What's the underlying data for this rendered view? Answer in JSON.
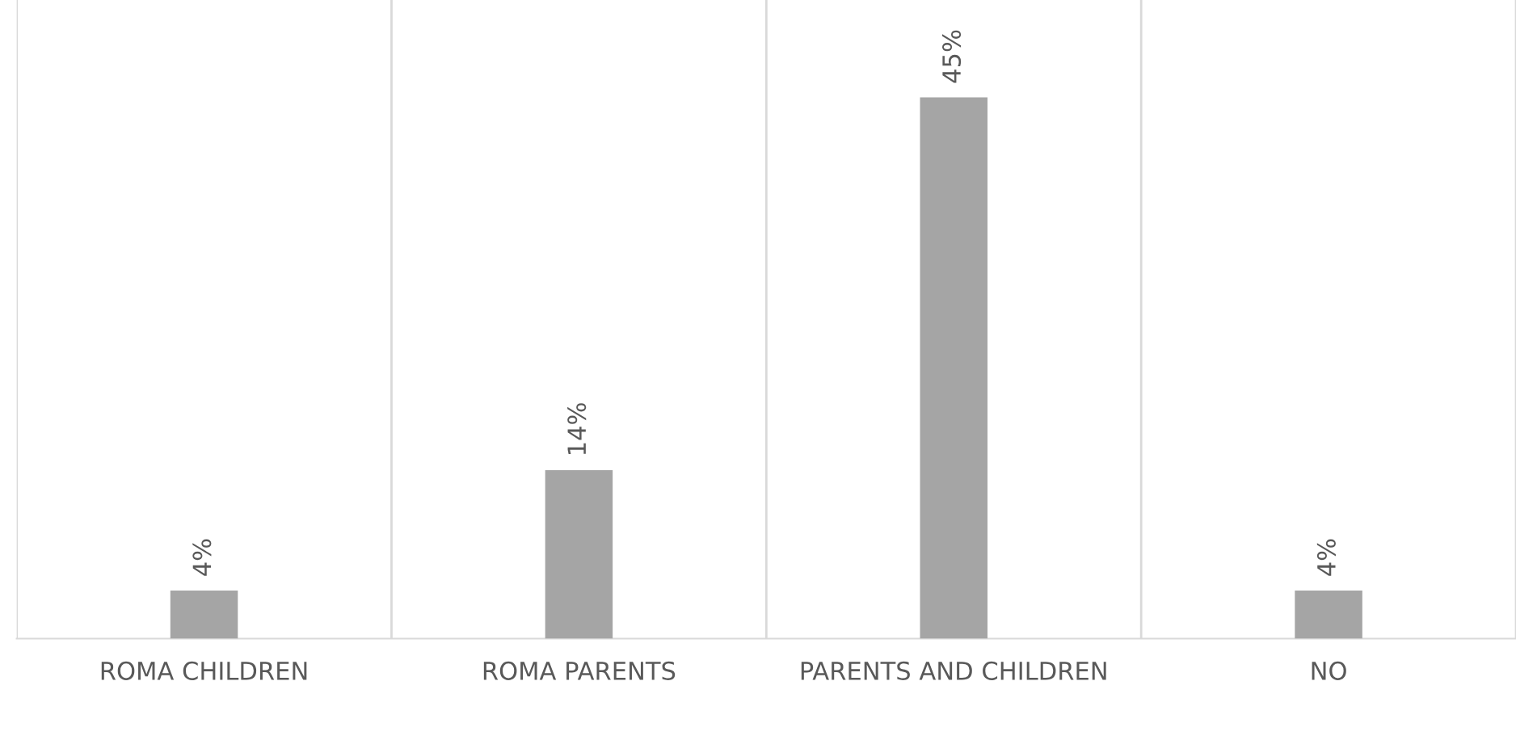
{
  "chart_data": {
    "type": "bar",
    "categories": [
      "ROMA CHILDREN",
      "ROMA PARENTS",
      "PARENTS AND CHILDREN",
      "NO"
    ],
    "values": [
      4,
      14,
      45,
      4
    ],
    "value_labels": [
      "4%",
      "14%",
      "45%",
      "4%"
    ],
    "color": "#a5a5a5",
    "grid": "x"
  }
}
